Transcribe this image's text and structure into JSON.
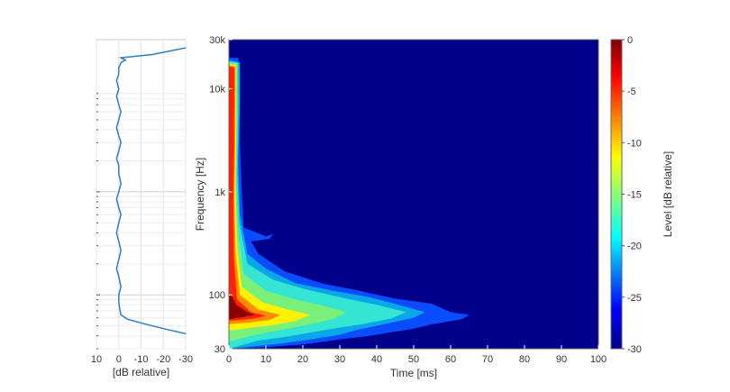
{
  "chart_data": [
    {
      "type": "line",
      "name": "frequency-response",
      "xlabel": "[dB relative]",
      "ylabel": "",
      "x_ticks": [
        10,
        0,
        -10,
        -20,
        -30
      ],
      "x_tick_labels": [
        "10",
        "0",
        "-10",
        "-20",
        "-30"
      ],
      "x_reversed": true,
      "xlim": [
        10,
        -30
      ],
      "ylim": [
        30,
        30000
      ],
      "y_scale": "log",
      "grid": true,
      "color": "#2a7fc0",
      "points": [
        [
          -1,
          20000
        ],
        [
          -2,
          19500
        ],
        [
          -3,
          19000
        ],
        [
          -15,
          21500
        ],
        [
          -30,
          25000
        ],
        [
          -1,
          18000
        ],
        [
          0,
          16000
        ],
        [
          0,
          14000
        ],
        [
          1,
          12000
        ],
        [
          0,
          10000
        ],
        [
          1,
          8500
        ],
        [
          0,
          7000
        ],
        [
          -1,
          6000
        ],
        [
          0,
          5000
        ],
        [
          1,
          4200
        ],
        [
          0,
          3500
        ],
        [
          -1,
          3000
        ],
        [
          0,
          2500
        ],
        [
          1,
          2100
        ],
        [
          0,
          1800
        ],
        [
          0,
          1500
        ],
        [
          -1,
          1200
        ],
        [
          0,
          1000
        ],
        [
          1,
          850
        ],
        [
          0,
          700
        ],
        [
          -1,
          600
        ],
        [
          0,
          500
        ],
        [
          1,
          400
        ],
        [
          0,
          330
        ],
        [
          -1,
          270
        ],
        [
          0,
          220
        ],
        [
          1,
          180
        ],
        [
          0,
          150
        ],
        [
          -1,
          120
        ],
        [
          0,
          100
        ],
        [
          0,
          85
        ],
        [
          -0.5,
          72
        ],
        [
          -1,
          64
        ],
        [
          -4,
          58
        ],
        [
          -12,
          52
        ],
        [
          -22,
          46
        ],
        [
          -30,
          42
        ]
      ]
    },
    {
      "type": "heatmap",
      "name": "cumulative-spectral-decay",
      "xlabel": "Time [ms]",
      "ylabel": "Frequency [Hz]",
      "xlim": [
        0,
        100
      ],
      "ylim": [
        30,
        30000
      ],
      "y_scale": "log",
      "x_ticks": [
        0,
        10,
        20,
        30,
        40,
        50,
        60,
        70,
        80,
        90,
        100
      ],
      "y_ticks": [
        30,
        100,
        1000,
        10000,
        30000
      ],
      "y_tick_labels": [
        "30",
        "100",
        "1k",
        "10k",
        "30k"
      ],
      "colormap": "jet",
      "background_color": "#00008b",
      "colorbar": {
        "label": "Level [dB relative]",
        "range": [
          -30,
          0
        ],
        "ticks": [
          0,
          -5,
          -10,
          -15,
          -20,
          -25,
          -30
        ],
        "tick_labels": [
          "0",
          "-5",
          "-10",
          "-15",
          "-20",
          "-25",
          "-30"
        ]
      },
      "contours": [
        {
          "level": -30,
          "color": "#0a4cff",
          "points": [
            [
              0,
              30
            ],
            [
              0,
              20000
            ],
            [
              2.5,
              20000
            ],
            [
              3,
              12000
            ],
            [
              3,
              3000
            ],
            [
              3.5,
              1000
            ],
            [
              4,
              450
            ],
            [
              10,
              370
            ],
            [
              12,
              390
            ],
            [
              11,
              350
            ],
            [
              6,
              330
            ],
            [
              8,
              250
            ],
            [
              15,
              170
            ],
            [
              25,
              130
            ],
            [
              35,
              110
            ],
            [
              45,
              92
            ],
            [
              55,
              82
            ],
            [
              60,
              68
            ],
            [
              65,
              64
            ],
            [
              63,
              58
            ],
            [
              55,
              52
            ],
            [
              50,
              47
            ],
            [
              45,
              44
            ],
            [
              38,
              40
            ],
            [
              30,
              37
            ],
            [
              20,
              33
            ],
            [
              10,
              31
            ],
            [
              5,
              30.5
            ],
            [
              0,
              30
            ]
          ]
        },
        {
          "level": -26,
          "color": "#0aa7e8",
          "points": [
            [
              0,
              30
            ],
            [
              0,
              19000
            ],
            [
              3,
              18000
            ],
            [
              3,
              8000
            ],
            [
              2.5,
              2000
            ],
            [
              3,
              600
            ],
            [
              5,
              250
            ],
            [
              10,
              180
            ],
            [
              18,
              130
            ],
            [
              28,
              110
            ],
            [
              38,
              95
            ],
            [
              46,
              80
            ],
            [
              53,
              68
            ],
            [
              50,
              60
            ],
            [
              42,
              52
            ],
            [
              35,
              46
            ],
            [
              30,
              41
            ],
            [
              22,
              37
            ],
            [
              15,
              34
            ],
            [
              8,
              32
            ],
            [
              0,
              30
            ]
          ]
        },
        {
          "level": -22,
          "color": "#33e5d2",
          "points": [
            [
              0,
              30
            ],
            [
              0,
              18500
            ],
            [
              2.5,
              18000
            ],
            [
              2.5,
              6000
            ],
            [
              2.3,
              1500
            ],
            [
              2.8,
              500
            ],
            [
              5,
              200
            ],
            [
              12,
              140
            ],
            [
              20,
              115
            ],
            [
              30,
              95
            ],
            [
              40,
              80
            ],
            [
              48,
              68
            ],
            [
              44,
              59
            ],
            [
              36,
              52
            ],
            [
              28,
              47
            ],
            [
              22,
              43
            ],
            [
              15,
              39
            ],
            [
              8,
              36
            ],
            [
              0,
              30
            ]
          ]
        },
        {
          "level": -18,
          "color": "#79f07a",
          "points": [
            [
              0,
              30
            ],
            [
              0,
              18000
            ],
            [
              2.2,
              17500
            ],
            [
              2.2,
              5000
            ],
            [
              2,
              1200
            ],
            [
              2.5,
              400
            ],
            [
              4,
              160
            ],
            [
              10,
              110
            ],
            [
              18,
              90
            ],
            [
              26,
              78
            ],
            [
              32,
              68
            ],
            [
              28,
              58
            ],
            [
              20,
              50
            ],
            [
              13,
              45
            ],
            [
              6,
              40
            ],
            [
              0,
              35
            ]
          ]
        },
        {
          "level": -14,
          "color": "#fff200",
          "points": [
            [
              0,
              30
            ],
            [
              0,
              17500
            ],
            [
              2,
              17000
            ],
            [
              2,
              4000
            ],
            [
              1.8,
              1000
            ],
            [
              2.2,
              300
            ],
            [
              3.5,
              120
            ],
            [
              9,
              85
            ],
            [
              16,
              72
            ],
            [
              22,
              64
            ],
            [
              18,
              56
            ],
            [
              12,
              51
            ],
            [
              6,
              48
            ],
            [
              0,
              45
            ]
          ]
        },
        {
          "level": -10,
          "color": "#ff8c00",
          "points": [
            [
              0,
              45
            ],
            [
              0,
              17000
            ],
            [
              1.8,
              16500
            ],
            [
              1.7,
              3000
            ],
            [
              1.5,
              900
            ],
            [
              1.8,
              250
            ],
            [
              3,
              100
            ],
            [
              8,
              72
            ],
            [
              14,
              64
            ],
            [
              11,
              57
            ],
            [
              6,
              54
            ],
            [
              0,
              52
            ]
          ]
        },
        {
          "level": -6,
          "color": "#ff2200",
          "points": [
            [
              0,
              52
            ],
            [
              0,
              16500
            ],
            [
              1.5,
              16000
            ],
            [
              1.4,
              2500
            ],
            [
              1.2,
              800
            ],
            [
              1.4,
              220
            ],
            [
              2.2,
              90
            ],
            [
              6,
              68
            ],
            [
              10,
              63
            ],
            [
              7,
              59
            ],
            [
              3,
              57
            ],
            [
              0,
              56
            ]
          ]
        },
        {
          "level": -2,
          "color": "#8b0000",
          "points": [
            [
              0,
              58
            ],
            [
              0,
              100
            ],
            [
              1,
              95
            ],
            [
              2,
              80
            ],
            [
              5,
              68
            ],
            [
              7,
              64
            ],
            [
              4,
              61
            ],
            [
              0,
              58
            ]
          ]
        }
      ]
    }
  ]
}
